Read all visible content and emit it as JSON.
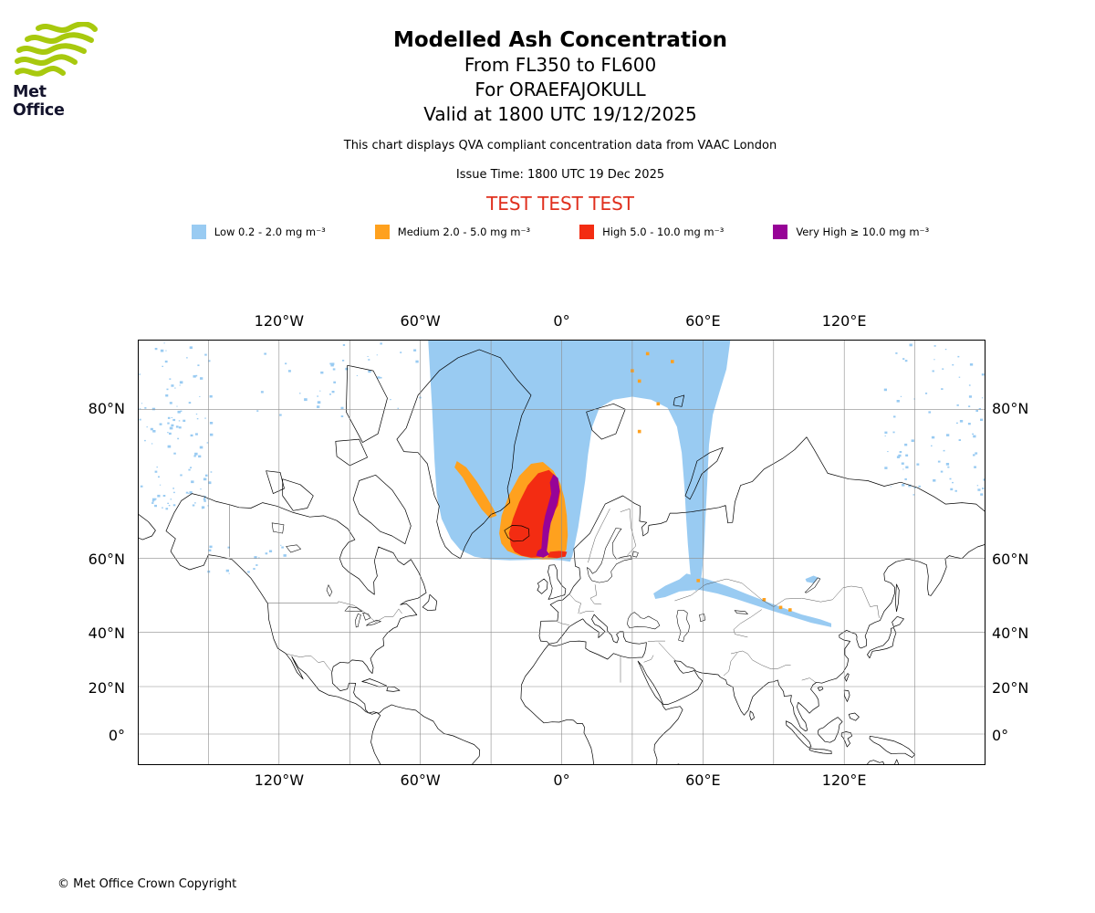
{
  "header": {
    "logo_text": "Met Office",
    "title": "Modelled Ash Concentration",
    "subtitle_flight_levels": "From FL350 to FL600",
    "subtitle_volcano": "For ORAEFAJOKULL",
    "subtitle_valid": "Valid at 1800 UTC 19/12/2025",
    "note": "This chart displays QVA compliant concentration data from VAAC London",
    "issue_time": "Issue Time: 1800 UTC 19 Dec 2025",
    "test_banner": "TEST TEST TEST"
  },
  "colors": {
    "test_text": "#e0301e",
    "logo_green": "#a8c90e",
    "grid": "#8c8c8c"
  },
  "legend": {
    "items": [
      {
        "id": "low",
        "label": "Low 0.2 - 2.0 mg m⁻³",
        "color": "#99CBF2"
      },
      {
        "id": "medium",
        "label": "Medium 2.0 - 5.0 mg m⁻³",
        "color": "#FFA11E"
      },
      {
        "id": "high",
        "label": "High 5.0 - 10.0 mg m⁻³",
        "color": "#F32C12"
      },
      {
        "id": "very_high",
        "label": "Very High ≥ 10.0 mg m⁻³",
        "color": "#970397"
      }
    ]
  },
  "map": {
    "projection": {
      "type": "mercator",
      "lon_range": [
        -180,
        180
      ],
      "lat_range": [
        -13.3,
        84.1
      ],
      "grid_lon_step_deg": 30,
      "grid_lat_step_deg": 20
    },
    "lon_labels": [
      "120°W",
      "60°W",
      "0°",
      "60°E",
      "120°E"
    ],
    "lat_labels": [
      "80°N",
      "60°N",
      "40°N",
      "20°N",
      "0°"
    ],
    "overlays": {
      "low": [
        [
          [
            -57,
            84.6
          ],
          [
            -55,
            80
          ],
          [
            -54,
            75.5
          ],
          [
            -53,
            71
          ],
          [
            -51,
            67.5
          ],
          [
            -47,
            64
          ],
          [
            -43,
            61.8
          ],
          [
            -37,
            60.4
          ],
          [
            -30,
            59.8
          ],
          [
            -22,
            59.6
          ],
          [
            -14,
            59.7
          ],
          [
            -7,
            59.8
          ],
          [
            0,
            59.6
          ],
          [
            3.6,
            59.3
          ],
          [
            4.6,
            60.6
          ],
          [
            5.6,
            63
          ],
          [
            7,
            66
          ],
          [
            8.6,
            70
          ],
          [
            10,
            73
          ],
          [
            11.2,
            76
          ],
          [
            13,
            78.6
          ],
          [
            16,
            80.1
          ],
          [
            22,
            80.7
          ],
          [
            30,
            80.9
          ],
          [
            38,
            80.7
          ],
          [
            45,
            80.1
          ],
          [
            49,
            78.6
          ],
          [
            51,
            76.2
          ],
          [
            52.2,
            72
          ],
          [
            52.8,
            68
          ],
          [
            53.6,
            63
          ],
          [
            54.6,
            57
          ],
          [
            55.4,
            53.2
          ],
          [
            57.2,
            52.2
          ],
          [
            59.2,
            55.2
          ],
          [
            60.4,
            61
          ],
          [
            61,
            67
          ],
          [
            61.9,
            73
          ],
          [
            62.6,
            77
          ],
          [
            64.2,
            79.6
          ],
          [
            67,
            81.2
          ],
          [
            70,
            82.6
          ],
          [
            72.4,
            84.6
          ]
        ],
        [
          [
            39,
            51.6
          ],
          [
            44,
            53.6
          ],
          [
            50,
            55.2
          ],
          [
            53,
            56.6
          ],
          [
            56,
            56.2
          ],
          [
            62,
            55.2
          ],
          [
            70,
            53.6
          ],
          [
            78,
            51.6
          ],
          [
            86,
            49.6
          ],
          [
            94,
            47.6
          ],
          [
            102,
            45.6
          ],
          [
            110,
            44.1
          ],
          [
            114.5,
            42.9
          ],
          [
            114.5,
            41.7
          ],
          [
            106,
            43.1
          ],
          [
            98,
            44.9
          ],
          [
            90,
            46.6
          ],
          [
            82,
            48.4
          ],
          [
            74,
            50.1
          ],
          [
            66,
            51.6
          ],
          [
            58,
            52.6
          ],
          [
            50,
            52.1
          ],
          [
            44,
            50.6
          ],
          [
            39.8,
            50.1
          ]
        ],
        [
          [
            103.5,
            55.3
          ],
          [
            107,
            56.1
          ],
          [
            110,
            55.4
          ],
          [
            107.5,
            54.2
          ],
          [
            104,
            54.6
          ]
        ]
      ],
      "medium": [
        [
          [
            -44.5,
            75.3
          ],
          [
            -40.5,
            74.6
          ],
          [
            -36,
            72.9
          ],
          [
            -32,
            70.9
          ],
          [
            -29,
            69.1
          ],
          [
            -27.6,
            68
          ],
          [
            -30.5,
            67.6
          ],
          [
            -34,
            69
          ],
          [
            -38,
            71.2
          ],
          [
            -42,
            73.4
          ],
          [
            -45.5,
            74.6
          ]
        ],
        [
          [
            -26.5,
            65
          ],
          [
            -25.5,
            68
          ],
          [
            -22.5,
            71
          ],
          [
            -18,
            73.6
          ],
          [
            -13,
            75
          ],
          [
            -8,
            75.2
          ],
          [
            -3.5,
            74.2
          ],
          [
            -0.5,
            72.6
          ],
          [
            1.2,
            70.6
          ],
          [
            2.2,
            68
          ],
          [
            2.6,
            64.6
          ],
          [
            2,
            61.9
          ],
          [
            0.4,
            60.4
          ],
          [
            -3,
            59.9
          ],
          [
            -8,
            59.8
          ],
          [
            -13,
            60.1
          ],
          [
            -18,
            60.6
          ],
          [
            -23,
            61.6
          ],
          [
            -25.6,
            63.1
          ]
        ]
      ],
      "medium_dots": [
        [
          30,
          82.5
        ],
        [
          33,
          81.9
        ],
        [
          41,
          80.4
        ],
        [
          47,
          83
        ],
        [
          36.5,
          83.4
        ],
        [
          33,
          78.2
        ],
        [
          58,
          54.9
        ],
        [
          86,
          49.9
        ],
        [
          93,
          47.7
        ],
        [
          97,
          47
        ]
      ],
      "high": [
        [
          [
            -21.5,
            62.6
          ],
          [
            -22.4,
            65
          ],
          [
            -20.6,
            67.6
          ],
          [
            -18,
            70.1
          ],
          [
            -14.4,
            72.4
          ],
          [
            -10,
            73.9
          ],
          [
            -5.4,
            74.3
          ],
          [
            -2,
            73.4
          ],
          [
            -0.6,
            71.6
          ],
          [
            -1.6,
            69.6
          ],
          [
            -3.9,
            68.1
          ],
          [
            -6.4,
            66.6
          ],
          [
            -7.9,
            64.6
          ],
          [
            -8.4,
            62.6
          ],
          [
            -7,
            61.1
          ],
          [
            -9,
            60.3
          ],
          [
            -13,
            60.2
          ],
          [
            -17,
            60.6
          ],
          [
            -20,
            61.4
          ]
        ],
        [
          [
            -6,
            60.3
          ],
          [
            -2,
            60.1
          ],
          [
            1.6,
            60.4
          ],
          [
            2.3,
            61.4
          ],
          [
            -1,
            61.6
          ],
          [
            -5,
            61.4
          ]
        ]
      ],
      "very_high": [
        [
          [
            -1.5,
            73.3
          ],
          [
            -0.8,
            71.8
          ],
          [
            -1.8,
            70
          ],
          [
            -3.2,
            68.3
          ],
          [
            -4.6,
            66.8
          ],
          [
            -5.4,
            65
          ],
          [
            -5.9,
            63
          ],
          [
            -6.3,
            61.6
          ],
          [
            -5.2,
            60.9
          ],
          [
            -7.8,
            60.2
          ],
          [
            -10.8,
            60.6
          ],
          [
            -10.2,
            61.6
          ],
          [
            -8.6,
            62.1
          ],
          [
            -8.3,
            64
          ],
          [
            -8,
            66
          ],
          [
            -7,
            68
          ],
          [
            -5.6,
            69.8
          ],
          [
            -4.4,
            71.3
          ],
          [
            -5,
            72.8
          ],
          [
            -3.5,
            73.8
          ]
        ]
      ],
      "speckle_zones": [
        {
          "lon_min": -180,
          "lon_max": -149,
          "lat_min": 69,
          "lat_max": 84,
          "count": 110
        },
        {
          "lon_min": 135,
          "lon_max": 180,
          "lat_min": 71,
          "lat_max": 84,
          "count": 80
        },
        {
          "lon_min": -152,
          "lon_max": -118,
          "lat_min": 56,
          "lat_max": 63,
          "count": 16
        },
        {
          "lon_min": -132,
          "lon_max": -90,
          "lat_min": 79.5,
          "lat_max": 84,
          "count": 26
        },
        {
          "lon_min": -88,
          "lon_max": -60,
          "lat_min": 80,
          "lat_max": 84,
          "count": 14
        }
      ]
    }
  },
  "footer": {
    "copyright": "© Met Office Crown Copyright"
  }
}
